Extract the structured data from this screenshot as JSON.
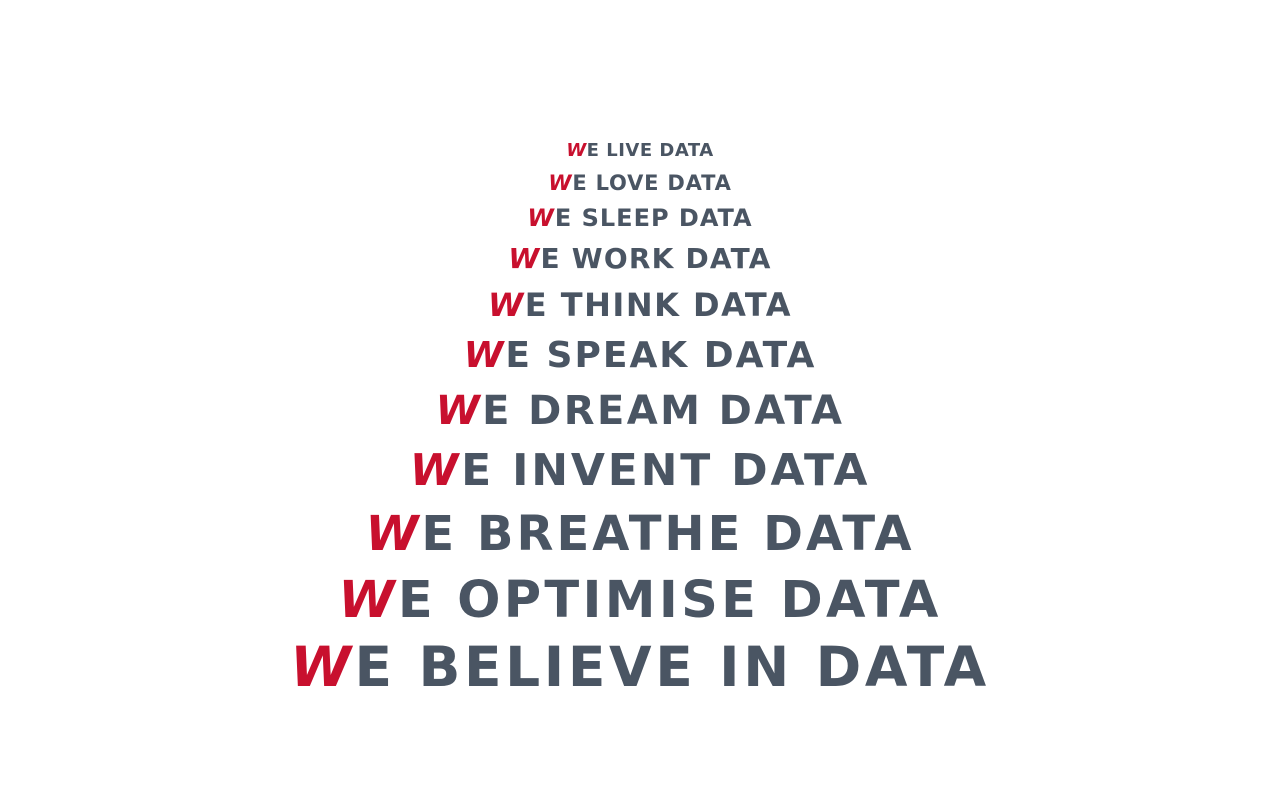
{
  "lines": [
    {
      "we": "W",
      "e": "E",
      "rest": " LIVE DATA"
    },
    {
      "we": "W",
      "e": "E",
      "rest": " LOVE DATA"
    },
    {
      "we": "W",
      "e": "E",
      "rest": " SLEEP DATA"
    },
    {
      "we": "W",
      "e": "E",
      "rest": " WORK DATA"
    },
    {
      "we": "W",
      "e": "E",
      "rest": " THINK DATA"
    },
    {
      "we": "W",
      "e": "E",
      "rest": " SPEAK DATA"
    },
    {
      "we": "W",
      "e": "E",
      "rest": " DREAM DATA"
    },
    {
      "we": "W",
      "e": "E",
      "rest": " INVENT DATA"
    },
    {
      "we": "W",
      "e": "E",
      "rest": " BREATHE DATA"
    },
    {
      "we": "W",
      "e": "E",
      "rest": " OPTIMISE DATA"
    },
    {
      "we": "W",
      "e": "E",
      "rest": " BELIEVE IN DATA"
    }
  ],
  "colors": {
    "accent": "#c8102e",
    "text": "#4a5563",
    "background": "#ffffff"
  }
}
